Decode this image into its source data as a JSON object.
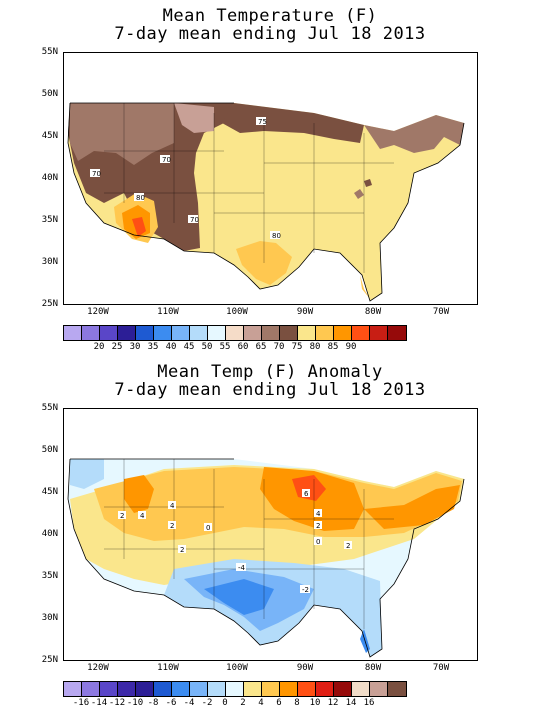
{
  "panel1": {
    "title_line1": "Mean Temperature (F)",
    "title_line2": "7-day mean ending Jul 18 2013",
    "lat_labels": [
      "55N",
      "50N",
      "45N",
      "40N",
      "35N",
      "30N",
      "25N"
    ],
    "lon_labels": [
      "120W",
      "110W",
      "100W",
      "90W",
      "80W",
      "70W"
    ],
    "contour_labels": [
      "75",
      "70",
      "70",
      "80",
      "70",
      "80",
      "65"
    ],
    "colorbar_labels": [
      "20",
      "25",
      "30",
      "35",
      "40",
      "45",
      "50",
      "55",
      "60",
      "65",
      "70",
      "75",
      "80",
      "85",
      "90"
    ],
    "colorbar_colors": [
      "#b8a8f0",
      "#8c78e0",
      "#5a46c8",
      "#2c1e96",
      "#1e5ad2",
      "#3c8cf0",
      "#78b4f8",
      "#b4dcfa",
      "#e6f8ff",
      "#f5dcc8",
      "#c8a096",
      "#a07868",
      "#7a5040",
      "#fae68c",
      "#ffc850",
      "#ff9600",
      "#ff5014",
      "#c81e14",
      "#960a0a"
    ]
  },
  "panel2": {
    "title_line1": "Mean Temp (F) Anomaly",
    "title_line2": "7-day mean ending Jul 18 2013",
    "lat_labels": [
      "55N",
      "50N",
      "45N",
      "40N",
      "35N",
      "30N",
      "25N"
    ],
    "lon_labels": [
      "120W",
      "110W",
      "100W",
      "90W",
      "80W",
      "70W"
    ],
    "contour_labels": [
      "2",
      "4",
      "2",
      "0",
      "2",
      "4",
      "-4",
      "-2",
      "6",
      "4",
      "2",
      "0",
      "2"
    ],
    "colorbar_labels": [
      "-16",
      "-14",
      "-12",
      "-10",
      "-8",
      "-6",
      "-4",
      "-2",
      "0",
      "2",
      "4",
      "6",
      "8",
      "10",
      "12",
      "14",
      "16"
    ],
    "colorbar_colors": [
      "#b8a8f0",
      "#8c78e0",
      "#5a46c8",
      "#3c28a8",
      "#2c1e96",
      "#1e5ad2",
      "#3c8cf0",
      "#78b4f8",
      "#b4dcfa",
      "#e6f8ff",
      "#fae68c",
      "#ffc850",
      "#ff9600",
      "#ff5014",
      "#e01e14",
      "#960a0a",
      "#f0dcc8",
      "#c8a096",
      "#7a5040"
    ]
  }
}
